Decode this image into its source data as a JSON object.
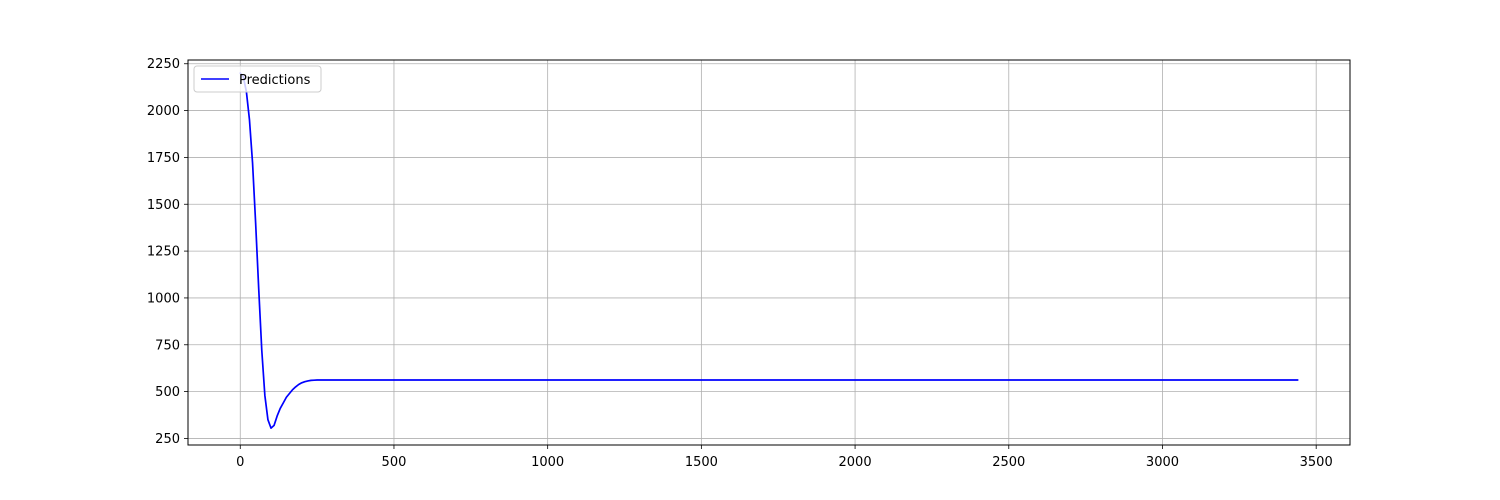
{
  "chart_data": {
    "type": "line",
    "title": "",
    "xlabel": "",
    "ylabel": "",
    "xlim": [
      -170,
      3610
    ],
    "ylim": [
      215,
      2270
    ],
    "xticks": [
      0,
      500,
      1000,
      1500,
      2000,
      2500,
      3000,
      3500
    ],
    "yticks": [
      250,
      500,
      750,
      1000,
      1250,
      1500,
      1750,
      2000,
      2250
    ],
    "grid": true,
    "legend": {
      "position": "upper-left",
      "entries": [
        "Predictions"
      ]
    },
    "series": [
      {
        "name": "Predictions",
        "color": "#0000ff",
        "x": [
          0,
          10,
          20,
          30,
          40,
          50,
          60,
          70,
          80,
          90,
          100,
          110,
          120,
          130,
          140,
          150,
          160,
          170,
          180,
          190,
          200,
          210,
          220,
          230,
          240,
          250,
          260,
          280,
          300,
          350,
          400,
          500,
          1000,
          1500,
          2000,
          2500,
          3000,
          3440
        ],
        "values": [
          2200,
          2180,
          2100,
          1950,
          1720,
          1400,
          1050,
          720,
          480,
          350,
          305,
          320,
          370,
          410,
          440,
          470,
          490,
          510,
          525,
          538,
          547,
          553,
          557,
          560,
          561,
          562,
          562,
          562,
          562,
          562,
          562,
          562,
          562,
          562,
          562,
          562,
          562,
          562
        ]
      }
    ]
  }
}
